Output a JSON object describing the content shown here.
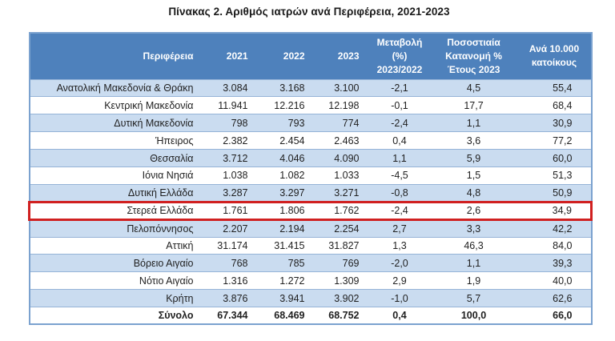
{
  "title": "Πίνακας 2. Αριθμός ιατρών ανά Περιφέρεια, 2021-2023",
  "colors": {
    "header_bg": "#4e81bc",
    "band_bg": "#cadcf0",
    "row_line": "#95b3d7",
    "outer_border": "#7ba2cf",
    "highlight_red": "#d02020",
    "header_text": "#ffffff",
    "body_text": "#1f1f1f"
  },
  "table": {
    "columns": [
      {
        "label": "Περιφέρεια"
      },
      {
        "label": "2021"
      },
      {
        "label": "2022"
      },
      {
        "label": "2023"
      },
      {
        "label": "Μεταβολή\n(%)\n2023/2022"
      },
      {
        "label": "Ποσοστιαία\nΚατανομή %\nΈτους 2023"
      },
      {
        "label": "Ανά 10.000\nκατοίκους"
      }
    ],
    "rows": [
      {
        "region": "Ανατολική Μακεδονία & Θράκη",
        "values": [
          "3.084",
          "3.168",
          "3.100",
          "-2,1",
          "4,5",
          "55,4"
        ],
        "highlighted": false
      },
      {
        "region": "Κεντρική Μακεδονία",
        "values": [
          "11.941",
          "12.216",
          "12.198",
          "-0,1",
          "17,7",
          "68,4"
        ],
        "highlighted": false
      },
      {
        "region": "Δυτική Μακεδονία",
        "values": [
          "798",
          "793",
          "774",
          "-2,4",
          "1,1",
          "30,9"
        ],
        "highlighted": false
      },
      {
        "region": "Ήπειρος",
        "values": [
          "2.382",
          "2.454",
          "2.463",
          "0,4",
          "3,6",
          "77,2"
        ],
        "highlighted": false
      },
      {
        "region": "Θεσσαλία",
        "values": [
          "3.712",
          "4.046",
          "4.090",
          "1,1",
          "5,9",
          "60,0"
        ],
        "highlighted": false
      },
      {
        "region": "Ιόνια Νησιά",
        "values": [
          "1.038",
          "1.082",
          "1.033",
          "-4,5",
          "1,5",
          "51,3"
        ],
        "highlighted": false
      },
      {
        "region": "Δυτική Ελλάδα",
        "values": [
          "3.287",
          "3.297",
          "3.271",
          "-0,8",
          "4,8",
          "50,9"
        ],
        "highlighted": false
      },
      {
        "region": "Στερεά Ελλάδα",
        "values": [
          "1.761",
          "1.806",
          "1.762",
          "-2,4",
          "2,6",
          "34,9"
        ],
        "highlighted": true
      },
      {
        "region": "Πελοπόννησος",
        "values": [
          "2.207",
          "2.194",
          "2.254",
          "2,7",
          "3,3",
          "42,2"
        ],
        "highlighted": false
      },
      {
        "region": "Αττική",
        "values": [
          "31.174",
          "31.415",
          "31.827",
          "1,3",
          "46,3",
          "84,0"
        ],
        "highlighted": false
      },
      {
        "region": "Βόρειο Αιγαίο",
        "values": [
          "768",
          "785",
          "769",
          "-2,0",
          "1,1",
          "39,3"
        ],
        "highlighted": false
      },
      {
        "region": "Νότιο Αιγαίο",
        "values": [
          "1.316",
          "1.272",
          "1.309",
          "2,9",
          "1,9",
          "40,0"
        ],
        "highlighted": false
      },
      {
        "region": "Κρήτη",
        "values": [
          "3.876",
          "3.941",
          "3.902",
          "-1,0",
          "5,7",
          "62,6"
        ],
        "highlighted": false
      }
    ],
    "total": {
      "region": "Σύνολο",
      "values": [
        "67.344",
        "68.469",
        "68.752",
        "0,4",
        "100,0",
        "66,0"
      ]
    }
  }
}
